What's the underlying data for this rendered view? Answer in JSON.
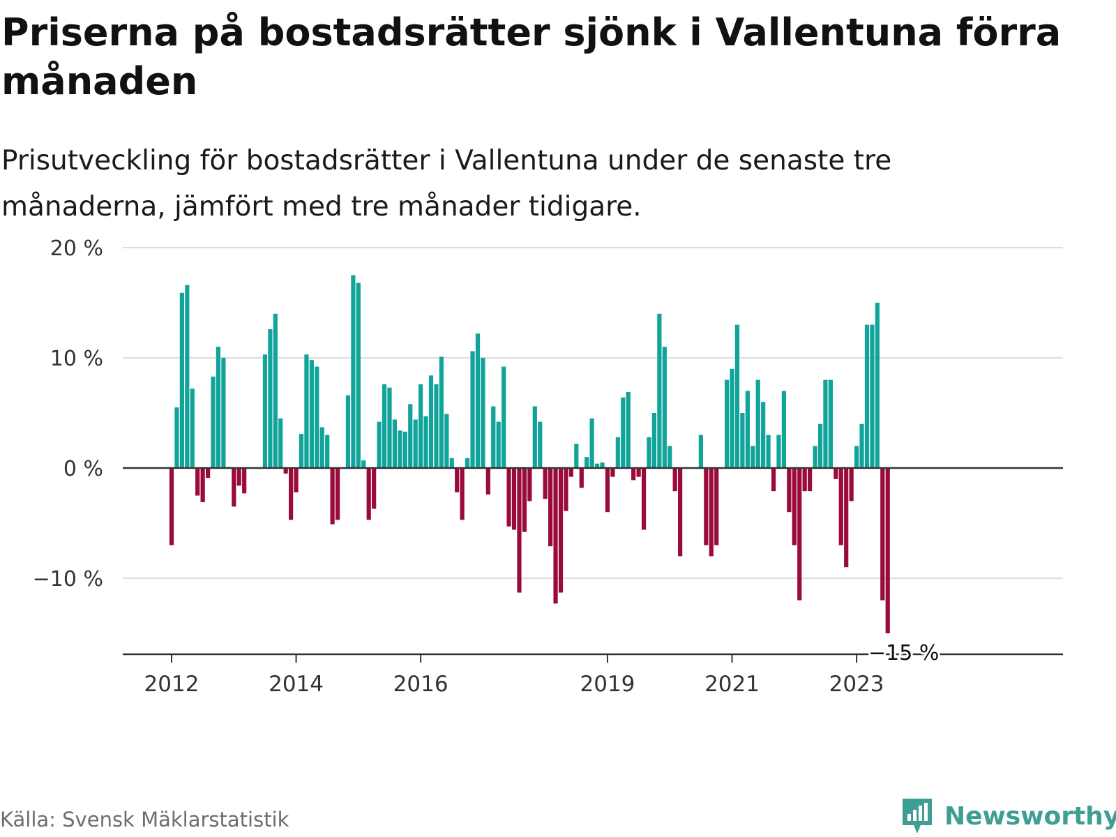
{
  "title": "Priserna på bostadsrätter sjönk i Vallentuna förra månaden",
  "subtitle": "Prisutveckling för bostadsrätter i Vallentuna under de senaste tre månaderna, jämfört med tre månader tidigare.",
  "source": "Källa: Svensk Mäklarstatistik",
  "brand": "Newsworthy",
  "colors": {
    "positive": "#10a49a",
    "negative": "#9a0a3a",
    "grid": "#dddddd",
    "axis": "#333333",
    "brand": "#3e9e93"
  },
  "chart_data": {
    "type": "bar",
    "title": "",
    "xlabel": "",
    "ylabel": "",
    "ylim": [
      -17,
      20
    ],
    "y_ticks": [
      {
        "value": 20,
        "label": "20 %"
      },
      {
        "value": 10,
        "label": "10 %"
      },
      {
        "value": 0,
        "label": "0 %"
      },
      {
        "value": -10,
        "label": "−10 %"
      }
    ],
    "x_ticks": [
      {
        "index": 0,
        "label": "2012"
      },
      {
        "index": 24,
        "label": "2014"
      },
      {
        "index": 48,
        "label": "2016"
      },
      {
        "index": 84,
        "label": "2019"
      },
      {
        "index": 108,
        "label": "2021"
      },
      {
        "index": 132,
        "label": "2023"
      }
    ],
    "start": "2012-01",
    "values": [
      -7,
      5.5,
      15.9,
      16.6,
      7.2,
      -2.5,
      -3.1,
      -0.9,
      8.3,
      11,
      10,
      0.1,
      -3.5,
      -1.6,
      -2.3,
      null,
      null,
      null,
      10.3,
      12.6,
      14,
      4.5,
      -0.5,
      -4.7,
      -2.2,
      3.1,
      10.3,
      9.8,
      9.2,
      3.7,
      3,
      -5.1,
      -4.7,
      null,
      6.6,
      17.5,
      16.8,
      0.7,
      -4.7,
      -3.7,
      4.2,
      7.6,
      7.3,
      4.4,
      3.4,
      3.3,
      5.8,
      4.4,
      7.6,
      4.7,
      8.4,
      7.6,
      10.1,
      4.9,
      0.9,
      -2.2,
      -4.7,
      0.9,
      10.6,
      12.2,
      10,
      -2.4,
      5.6,
      4.2,
      9.2,
      -5.3,
      -5.6,
      -11.3,
      -5.8,
      -3,
      5.6,
      4.2,
      -2.8,
      -7.1,
      -12.3,
      -11.3,
      -3.9,
      -0.8,
      2.2,
      -1.8,
      1,
      4.5,
      0.4,
      0.5,
      -4,
      -0.8,
      2.8,
      6.4,
      6.9,
      -1.1,
      -0.8,
      -5.6,
      2.8,
      5,
      14,
      11,
      2,
      -2.1,
      -8,
      null,
      null,
      null,
      3,
      -7,
      -8,
      -7,
      null,
      8,
      9,
      13,
      5,
      7,
      2,
      8,
      6,
      3,
      -2.1,
      3,
      7,
      -4,
      -7,
      -12,
      -2.1,
      -2.1,
      2,
      4,
      8,
      8,
      -1,
      -7,
      -9,
      -3,
      2,
      4,
      13,
      13,
      15,
      -12,
      -15
    ],
    "last_label": "−15 %"
  }
}
